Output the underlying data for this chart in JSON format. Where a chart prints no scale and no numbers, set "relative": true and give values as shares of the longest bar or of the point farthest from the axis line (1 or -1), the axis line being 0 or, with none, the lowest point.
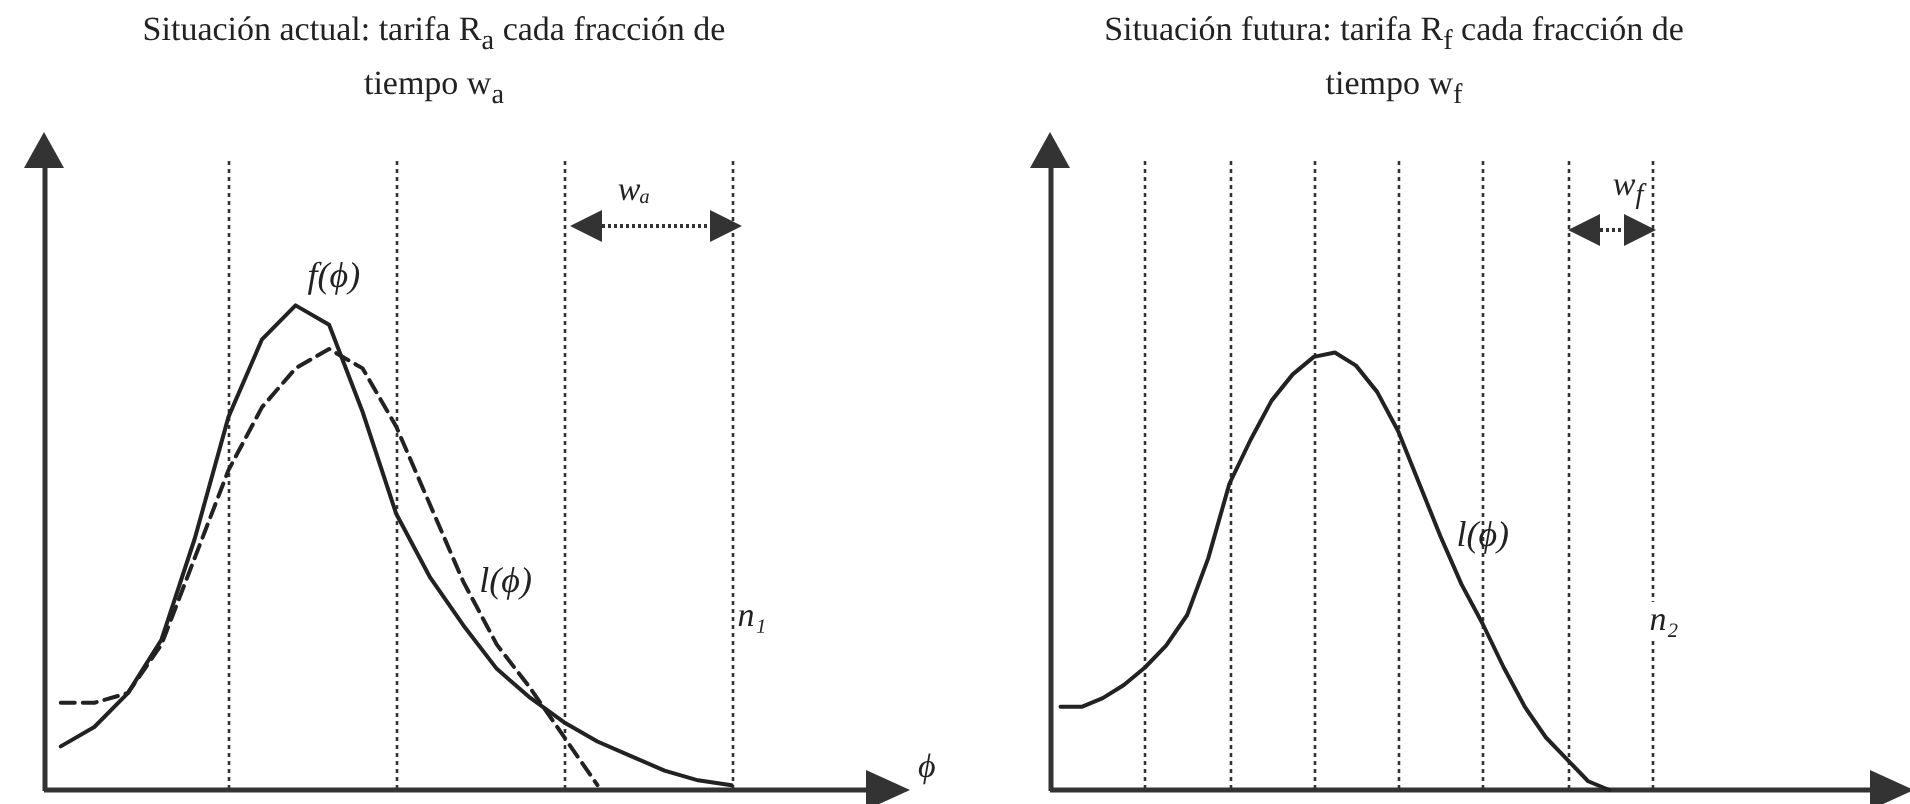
{
  "chart_data": [
    {
      "type": "line",
      "title": "Situación actual: tarifa R$_{a}$ cada fracción de tiempo w$_{a}$",
      "xlabel": "ϕ",
      "relative": true,
      "grid": "x",
      "categories": [
        null,
        null,
        null,
        null,
        null,
        null,
        null,
        null,
        null,
        null,
        null,
        null,
        null,
        null,
        null,
        null,
        null,
        null,
        null,
        null,
        null,
        null,
        null,
        null
      ],
      "series": [
        {
          "name": "f(ϕ)",
          "color": "#222222",
          "line_style": "solid",
          "values": [
            0.09,
            0.13,
            0.2,
            0.31,
            0.52,
            0.77,
            0.93,
            1.0,
            0.96,
            0.78,
            0.57,
            0.44,
            0.34,
            0.25,
            0.19,
            0.14,
            0.1,
            0.07,
            0.04,
            0.02,
            0.01,
            null,
            null,
            null
          ]
        },
        {
          "name": "l(ϕ)",
          "color": "#222222",
          "line_style": "dashed",
          "values": [
            0.18,
            0.18,
            0.2,
            0.3,
            0.48,
            0.66,
            0.79,
            0.87,
            0.91,
            0.87,
            0.75,
            0.59,
            0.43,
            0.3,
            0.21,
            0.11,
            0.01,
            null,
            null,
            null,
            null,
            null,
            null,
            null
          ]
        }
      ],
      "annotations": [
        "wₐ",
        "n₁"
      ]
    },
    {
      "type": "line",
      "title": "Situación futura: tarifa R$_{f}$ cada fracción de tiempo w$_{f}$",
      "relative": true,
      "grid": "x",
      "categories": [
        null,
        null,
        null,
        null,
        null,
        null,
        null,
        null,
        null,
        null,
        null,
        null,
        null,
        null,
        null,
        null,
        null,
        null,
        null,
        null,
        null,
        null,
        null,
        null,
        null,
        null,
        null,
        null,
        null,
        null,
        null,
        null,
        null,
        null,
        null,
        null,
        null,
        null,
        null
      ],
      "series": [
        {
          "name": "l(ϕ)",
          "color": "#222222",
          "line_style": "solid",
          "values": [
            0.19,
            0.19,
            0.21,
            0.24,
            0.28,
            0.33,
            0.4,
            0.53,
            0.7,
            0.8,
            0.89,
            0.95,
            0.99,
            1.0,
            0.97,
            0.91,
            0.82,
            0.7,
            0.58,
            0.47,
            0.38,
            0.28,
            0.19,
            0.12,
            0.07,
            0.02,
            0,
            null,
            null,
            null,
            null,
            null,
            null,
            null,
            null,
            null,
            null,
            null,
            null
          ]
        }
      ],
      "annotations": [
        "w$_{f}$",
        "n₂"
      ]
    }
  ]
}
